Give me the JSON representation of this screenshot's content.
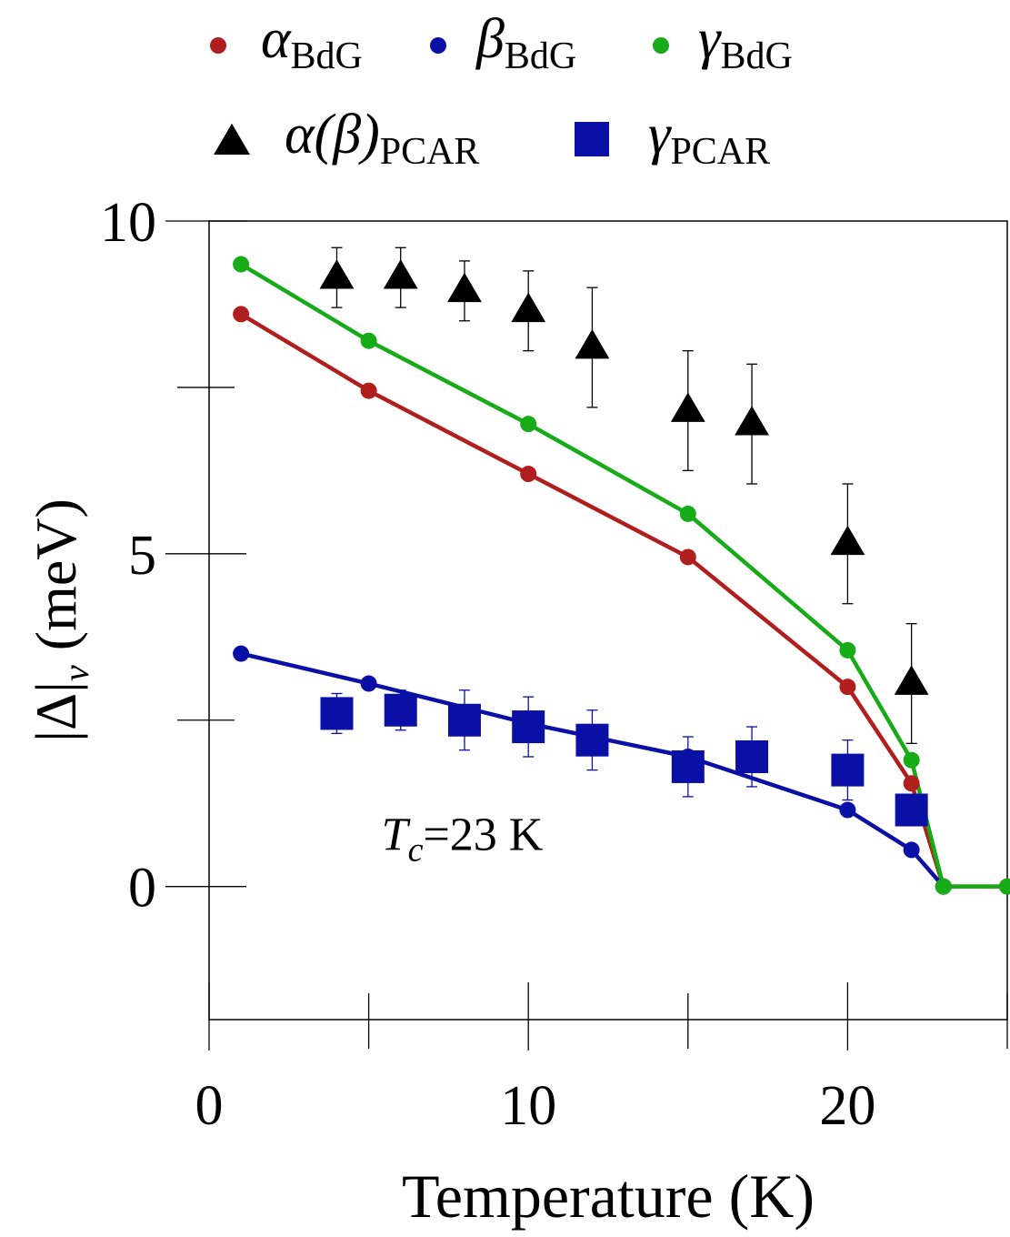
{
  "chart_data": {
    "type": "scatter",
    "xlabel": "Temperature (K)",
    "ylabel": {
      "main": "|Δ|",
      "sub": "ν",
      "unit": " (meV)"
    },
    "xlim": [
      0,
      25
    ],
    "ylim": [
      -2,
      10
    ],
    "x_ticks": [
      0,
      10,
      20
    ],
    "x_minor_ticks": [
      5,
      15,
      25
    ],
    "y_ticks": [
      0,
      5,
      10
    ],
    "y_minor_ticks": [
      2.5,
      7.5
    ],
    "grid": false,
    "legend_position": "top",
    "annotation": {
      "symbol": "T",
      "sub": "c",
      "text": "=23 K",
      "x": 5.4,
      "y": 0.55
    },
    "series": [
      {
        "name": "α",
        "name_sub": "BdG",
        "marker": "circle",
        "line": true,
        "color": "#b01e1e",
        "x": [
          1,
          5,
          10,
          15,
          20,
          22,
          23,
          25
        ],
        "y": [
          8.6,
          7.45,
          6.2,
          4.95,
          3.0,
          1.55,
          0,
          0
        ]
      },
      {
        "name": "β",
        "name_sub": "BdG",
        "marker": "circle",
        "line": true,
        "color": "#0a10a6",
        "x": [
          1,
          5,
          10,
          15,
          20,
          22,
          23
        ],
        "y": [
          3.5,
          3.05,
          2.45,
          1.95,
          1.15,
          0.55,
          0
        ]
      },
      {
        "name": "γ",
        "name_sub": "BdG",
        "marker": "circle",
        "line": true,
        "color": "#17ab17",
        "x": [
          1,
          5,
          10,
          15,
          20,
          22,
          23,
          25
        ],
        "y": [
          9.35,
          8.2,
          6.95,
          5.6,
          3.55,
          1.9,
          0,
          0
        ]
      },
      {
        "name": "α(β)",
        "name_sub": "PCAR",
        "marker": "triangle",
        "line": false,
        "color": "#000000",
        "x": [
          4,
          6,
          8,
          10,
          12,
          15,
          17,
          20,
          22
        ],
        "y": [
          9.15,
          9.15,
          8.95,
          8.65,
          8.1,
          7.15,
          6.95,
          5.15,
          3.05
        ],
        "err": [
          0.45,
          0.45,
          0.45,
          0.6,
          0.9,
          0.9,
          0.9,
          0.9,
          0.9
        ]
      },
      {
        "name": "γ",
        "name_sub": "PCAR",
        "marker": "square",
        "line": false,
        "color": "#0a10a6",
        "x": [
          4,
          6,
          8,
          10,
          12,
          15,
          17,
          20,
          22
        ],
        "y": [
          2.6,
          2.65,
          2.5,
          2.4,
          2.2,
          1.8,
          1.95,
          1.75,
          1.15
        ],
        "err": [
          0.3,
          0.3,
          0.45,
          0.45,
          0.45,
          0.45,
          0.45,
          0.45,
          0.0
        ]
      }
    ]
  }
}
